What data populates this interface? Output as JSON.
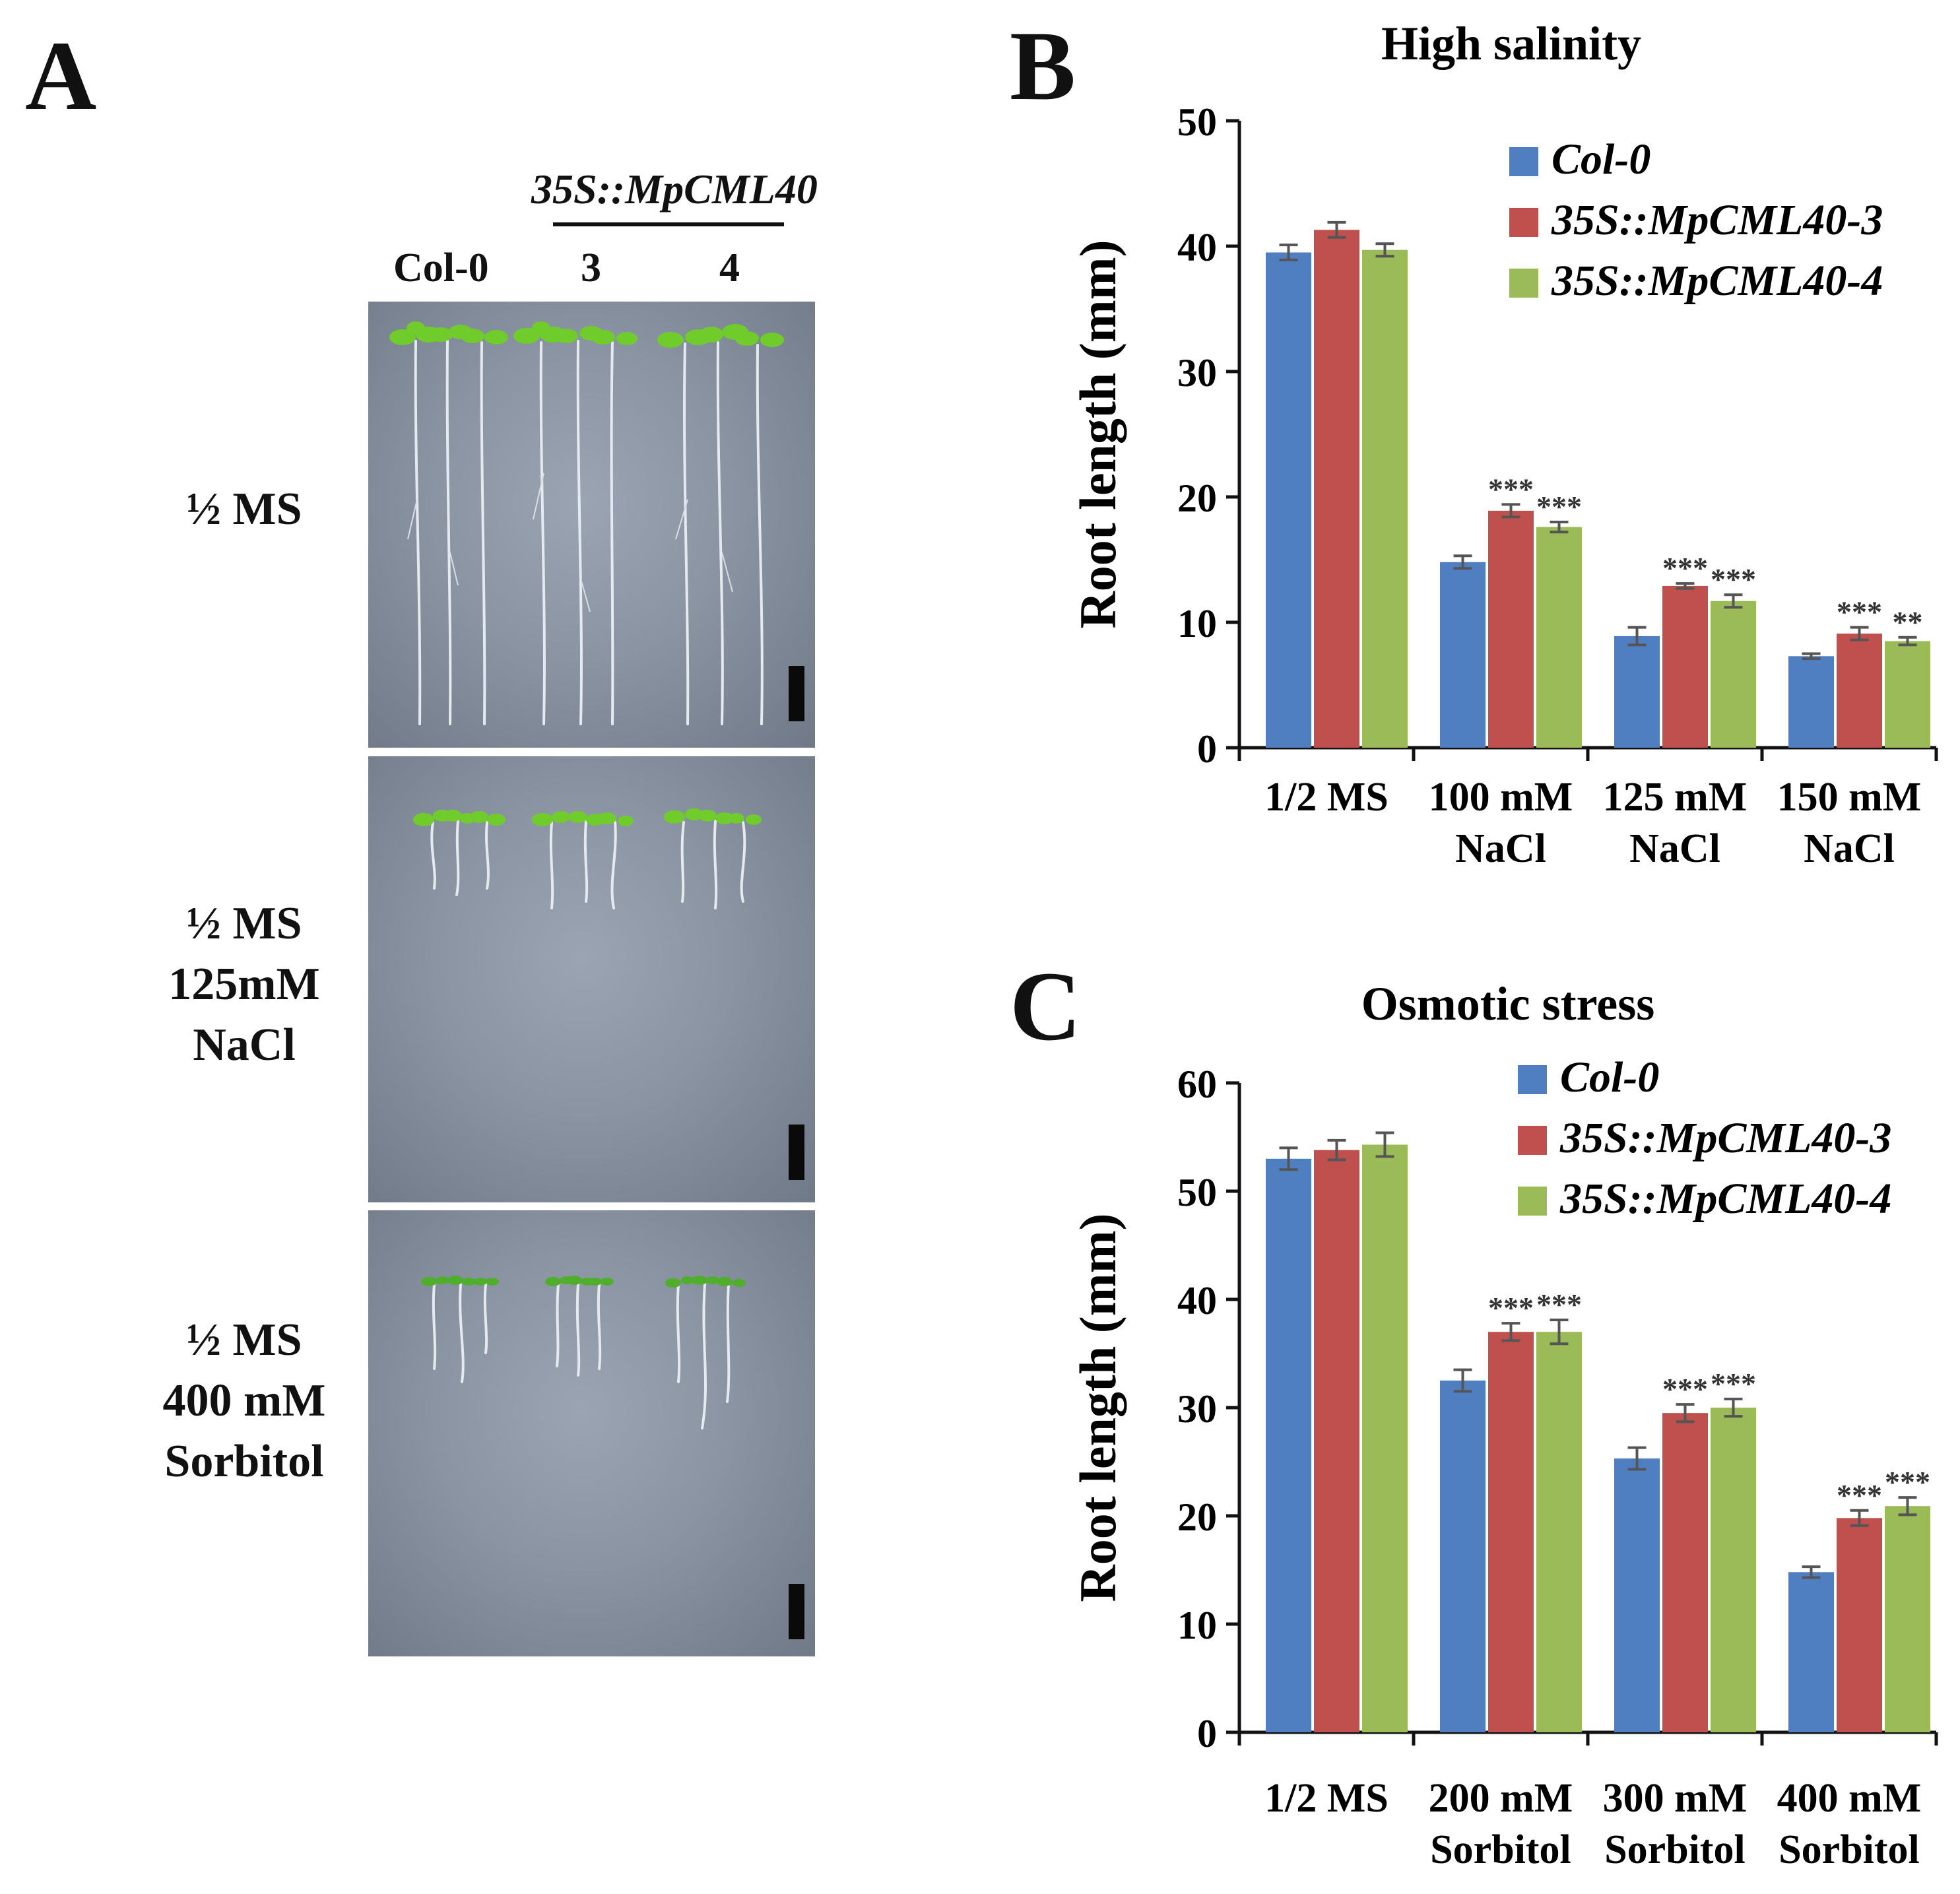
{
  "panel_a": {
    "letter": "A",
    "construct_label": "35S::MpCML40",
    "column_labels": [
      "Col-0",
      "3",
      "4"
    ],
    "row_labels": [
      [
        "½ MS"
      ],
      [
        "½ MS",
        "125mM",
        "NaCl"
      ],
      [
        "½ MS",
        "400 mM",
        "Sorbitol"
      ]
    ],
    "colors": {
      "plate": "#8a94a3",
      "seedling": "#6fcc2a",
      "root": "#e8ecef",
      "scale_bar": "#0a0a0a"
    }
  },
  "chart_data": [
    {
      "panel": "B",
      "type": "bar",
      "title": "High salinity",
      "xlabel": "",
      "ylabel": "Root length (mm)",
      "ylim": [
        0,
        50
      ],
      "yticks": [
        0,
        10,
        20,
        30,
        40,
        50
      ],
      "categories": [
        [
          "1/2 MS"
        ],
        [
          "100 mM",
          "NaCl"
        ],
        [
          "125 mM",
          "NaCl"
        ],
        [
          "150 mM",
          "NaCl"
        ]
      ],
      "series": [
        {
          "name": "Col-0",
          "color": "#4f7fc1",
          "values": [
            39.5,
            14.8,
            8.9,
            7.3
          ],
          "errors": [
            0.6,
            0.5,
            0.7,
            0.2
          ],
          "sig": [
            "",
            "",
            "",
            ""
          ]
        },
        {
          "name": "35S::MpCML40-3",
          "color": "#c0504d",
          "values": [
            41.3,
            18.9,
            12.9,
            9.1
          ],
          "errors": [
            0.6,
            0.5,
            0.2,
            0.5
          ],
          "sig": [
            "",
            "***",
            "***",
            "***"
          ]
        },
        {
          "name": "35S::MpCML40-4",
          "color": "#9bbb59",
          "values": [
            39.7,
            17.6,
            11.7,
            8.5
          ],
          "errors": [
            0.5,
            0.4,
            0.5,
            0.3
          ],
          "sig": [
            "",
            "***",
            "***",
            "**"
          ]
        }
      ],
      "legend": "top-right"
    },
    {
      "panel": "C",
      "type": "bar",
      "title": "Osmotic stress",
      "xlabel": "",
      "ylabel": "Root length (mm)",
      "ylim": [
        0,
        60
      ],
      "yticks": [
        0,
        10,
        20,
        30,
        40,
        50,
        60
      ],
      "categories": [
        [
          "1/2 MS"
        ],
        [
          "200 mM",
          "Sorbitol"
        ],
        [
          "300 mM",
          "Sorbitol"
        ],
        [
          "400 mM",
          "Sorbitol"
        ]
      ],
      "series": [
        {
          "name": "Col-0",
          "color": "#4f7fc1",
          "values": [
            53.0,
            32.5,
            25.3,
            14.8
          ],
          "errors": [
            1.0,
            1.0,
            1.0,
            0.5
          ],
          "sig": [
            "",
            "",
            "",
            ""
          ]
        },
        {
          "name": "35S::MpCML40-3",
          "color": "#c0504d",
          "values": [
            53.8,
            37.0,
            29.5,
            19.8
          ],
          "errors": [
            0.9,
            0.8,
            0.8,
            0.7
          ],
          "sig": [
            "",
            "***",
            "***",
            "***"
          ]
        },
        {
          "name": "35S::MpCML40-4",
          "color": "#9bbb59",
          "values": [
            54.3,
            37.0,
            30.0,
            20.9
          ],
          "errors": [
            1.1,
            1.1,
            0.8,
            0.8
          ],
          "sig": [
            "",
            "***",
            "***",
            "***"
          ]
        }
      ],
      "legend": "top-right"
    }
  ]
}
